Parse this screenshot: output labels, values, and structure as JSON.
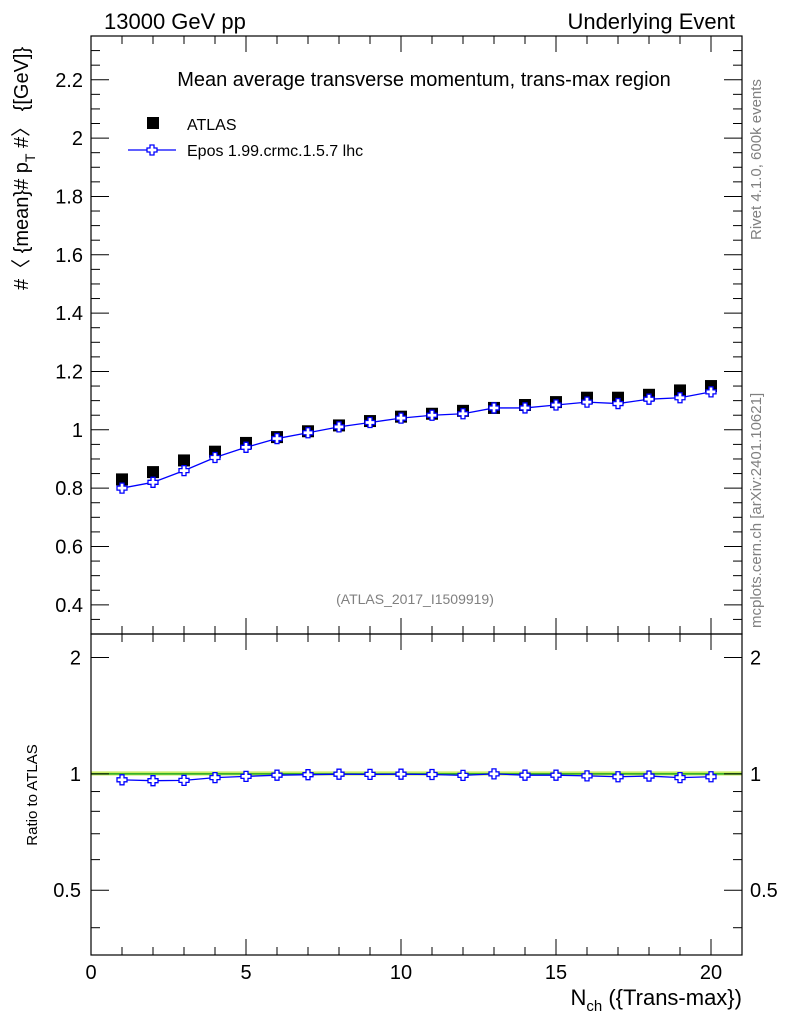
{
  "header": {
    "left": "13000 GeV pp",
    "right": "Underlying Event"
  },
  "side_labels": {
    "rivet": "Rivet 4.1.0,  600k events",
    "mcplots": "mcplots.cern.ch [arXiv:2401.10621]"
  },
  "chart_data": [
    {
      "type": "scatter",
      "title": "Mean average transverse momentum, trans-max region",
      "watermark": "(ATLAS_2017_I1509919)",
      "ylabel": "#〈 {mean}# p_T #〉 {[GeV]}",
      "ylabel_parts": {
        "main": "#〈 {mean}# p",
        "sub": "T",
        "tail": " #〉 {[GeV]}"
      },
      "xlim": [
        0,
        21
      ],
      "ylim": [
        0.3,
        2.35
      ],
      "yticks": [
        0.4,
        0.6,
        0.8,
        1,
        1.2,
        1.4,
        1.6,
        1.8,
        2,
        2.2
      ],
      "ytick_labels": [
        "0.4",
        "0.6",
        "0.8",
        "1",
        "1.2",
        "1.4",
        "1.6",
        "1.8",
        "2",
        "2.2"
      ],
      "legend": [
        "ATLAS",
        "Epos 1.99.crmc.1.5.7 lhc"
      ],
      "legend_position": "top-left",
      "x": [
        1,
        2,
        3,
        4,
        5,
        6,
        7,
        8,
        9,
        10,
        11,
        12,
        13,
        14,
        15,
        16,
        17,
        18,
        19,
        20
      ],
      "series": [
        {
          "name": "ATLAS",
          "color": "#000000",
          "values": [
            0.83,
            0.855,
            0.895,
            0.925,
            0.955,
            0.975,
            0.995,
            1.015,
            1.03,
            1.045,
            1.055,
            1.065,
            1.075,
            1.085,
            1.095,
            1.11,
            1.11,
            1.12,
            1.135,
            1.15
          ]
        },
        {
          "name": "Epos 1.99.crmc.1.5.7 lhc",
          "color": "#0000ff",
          "values": [
            0.8,
            0.82,
            0.86,
            0.905,
            0.94,
            0.97,
            0.99,
            1.01,
            1.025,
            1.04,
            1.05,
            1.055,
            1.075,
            1.075,
            1.085,
            1.095,
            1.09,
            1.105,
            1.11,
            1.13
          ]
        }
      ]
    },
    {
      "type": "scatter",
      "ylabel": "Ratio to ATLAS",
      "xlabel": "N_ch ({Trans-max})",
      "xlabel_parts": {
        "main": "N",
        "sub": "ch",
        "tail": " ({Trans-max})"
      },
      "xlim": [
        0,
        21
      ],
      "ylim": [
        0.34,
        2.3
      ],
      "yscale": "log",
      "yticks": [
        0.5,
        1,
        2
      ],
      "ytick_labels": [
        "0.5",
        "1",
        "2"
      ],
      "xticks": [
        0,
        5,
        10,
        15,
        20
      ],
      "xtick_labels": [
        "0",
        "5",
        "10",
        "15",
        "20"
      ],
      "band_color": "#ccee66",
      "reference_color": "#22aa22",
      "x": [
        1,
        2,
        3,
        4,
        5,
        6,
        7,
        8,
        9,
        10,
        11,
        12,
        13,
        14,
        15,
        16,
        17,
        18,
        19,
        20
      ],
      "series": [
        {
          "name": "Epos 1.99.crmc.1.5.7 lhc",
          "color": "#0000ff",
          "values": [
            0.965,
            0.96,
            0.962,
            0.978,
            0.985,
            0.992,
            0.995,
            0.998,
            0.997,
            0.998,
            0.996,
            0.991,
            1.0,
            0.992,
            0.992,
            0.988,
            0.983,
            0.987,
            0.978,
            0.983
          ]
        }
      ]
    }
  ]
}
